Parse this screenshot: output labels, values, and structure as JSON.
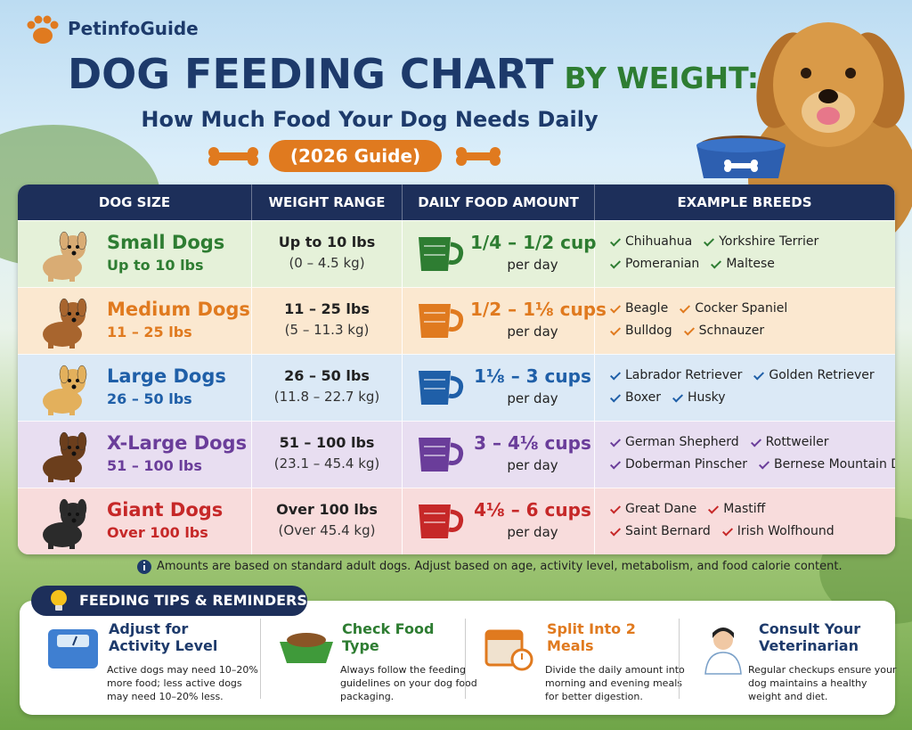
{
  "header": {
    "brand": "PetinfoGuide",
    "title_main": "DOG FEEDING CHART",
    "title_accent": "BY WEIGHT:",
    "subtitle": "How Much Food Your Dog Needs Daily",
    "badge": "(2026 Guide)"
  },
  "table": {
    "headers": [
      "DOG SIZE",
      "WEIGHT RANGE",
      "DAILY FOOD AMOUNT",
      "EXAMPLE BREEDS"
    ],
    "rows": [
      {
        "name": "Small Dogs",
        "range": "Up to 10 lbs",
        "weight": "Up to 10 lbs",
        "weight_kg": "(0 – 4.5 kg)",
        "amount": "1/4 – 1/2 cup",
        "per_day": "per day",
        "breeds": [
          "Chihuahua",
          "Yorkshire Terrier",
          "Pomeranian",
          "Maltese"
        ]
      },
      {
        "name": "Medium Dogs",
        "range": "11 – 25 lbs",
        "weight": "11 – 25 lbs",
        "weight_kg": "(5 – 11.3 kg)",
        "amount": "1/2 – 1⅛ cups",
        "per_day": "per day",
        "breeds": [
          "Beagle",
          "Cocker Spaniel",
          "Bulldog",
          "Schnauzer"
        ]
      },
      {
        "name": "Large Dogs",
        "range": "26 – 50 lbs",
        "weight": "26 – 50 lbs",
        "weight_kg": "(11.8 – 22.7 kg)",
        "amount": "1⅛ – 3 cups",
        "per_day": "per day",
        "breeds": [
          "Labrador Retriever",
          "Golden Retriever",
          "Boxer",
          "Husky"
        ]
      },
      {
        "name": "X-Large Dogs",
        "range": "51 – 100 lbs",
        "weight": "51 – 100 lbs",
        "weight_kg": "(23.1 – 45.4 kg)",
        "amount": "3 – 4⅛ cups",
        "per_day": "per day",
        "breeds": [
          "German Shepherd",
          "Rottweiler",
          "Doberman Pinscher",
          "Bernese Mountain Dog"
        ]
      },
      {
        "name": "Giant Dogs",
        "range": "Over 100 lbs",
        "weight": "Over 100 lbs",
        "weight_kg": "(Over 45.4 kg)",
        "amount": "4⅛ – 6 cups",
        "per_day": "per day",
        "breeds": [
          "Great Dane",
          "Mastiff",
          "Saint Bernard",
          "Irish Wolfhound"
        ]
      }
    ]
  },
  "note": "Amounts are based on standard adult dogs. Adjust based on age, activity level, metabolism, and food calorie content.",
  "tips": {
    "title": "FEEDING TIPS & REMINDERS",
    "items": [
      {
        "title": "Adjust for Activity Level",
        "text": "Active dogs may need 10–20% more food; less active dogs may need 10–20% less."
      },
      {
        "title": "Check Food Type",
        "text": "Always follow the feeding guidelines on your dog food packaging."
      },
      {
        "title": "Split Into 2 Meals",
        "text": "Divide the daily amount into morning and evening meals for better digestion."
      },
      {
        "title": "Consult Your Veterinarian",
        "text": "Regular checkups ensure your dog maintains a healthy weight and diet."
      }
    ]
  }
}
